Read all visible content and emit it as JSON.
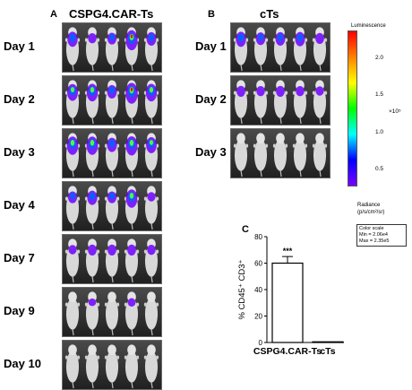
{
  "panel_a": {
    "letter": "A",
    "title": "CSPG4.CAR-Ts",
    "days": [
      "Day 1",
      "Day 2",
      "Day 3",
      "Day 4",
      "Day 7",
      "Day 9",
      "Day 10"
    ],
    "signal_levels": [
      [
        0.55,
        0.25,
        0.35,
        0.85,
        0.45
      ],
      [
        0.65,
        0.7,
        0.45,
        0.9,
        0.7
      ],
      [
        0.75,
        0.75,
        0.5,
        0.8,
        0.6
      ],
      [
        0.35,
        0.5,
        0.35,
        0.75,
        0.2
      ],
      [
        0.2,
        0.3,
        0.3,
        0.3,
        0.25
      ],
      [
        0.0,
        0.1,
        0.0,
        0.15,
        0.0
      ],
      [
        0.0,
        0.0,
        0.0,
        0.0,
        0.0
      ]
    ]
  },
  "panel_b": {
    "letter": "B",
    "title": "cTs",
    "days": [
      "Day 1",
      "Day 2",
      "Day 3"
    ],
    "signal_levels": [
      [
        0.55,
        0.4,
        0.45,
        0.5,
        0.3
      ],
      [
        0.3,
        0.25,
        0.3,
        0.25,
        0.2
      ],
      [
        0.0,
        0.0,
        0.0,
        0.0,
        0.0
      ]
    ]
  },
  "colorbar": {
    "title": "Luminescence",
    "ticks": [
      "2.0",
      "1.5",
      "1.0",
      "0.5"
    ],
    "multiplier": "×10⁵",
    "radiance_label_1": "Radiance",
    "radiance_label_2": "(p/s/cm²/sr)",
    "scale_title": "Color scale",
    "scale_min": "Min = 2.06e4",
    "scale_max": "Max = 2.35e5",
    "colors": [
      "#ff0000",
      "#ff8000",
      "#ffff00",
      "#00ff00",
      "#00ffff",
      "#0000ff",
      "#7a00ff"
    ]
  },
  "panel_c": {
    "letter": "C",
    "chart_data": {
      "type": "bar",
      "categories": [
        "CSPG4.CAR-Ts",
        "cTs"
      ],
      "values": [
        60,
        0.5
      ],
      "error": [
        5,
        0
      ],
      "ylabel": "% CD45⁺ CD3⁺",
      "yticks": [
        0,
        20,
        40,
        60,
        80
      ],
      "ylim": [
        0,
        80
      ],
      "significance": "***",
      "title": ""
    }
  }
}
